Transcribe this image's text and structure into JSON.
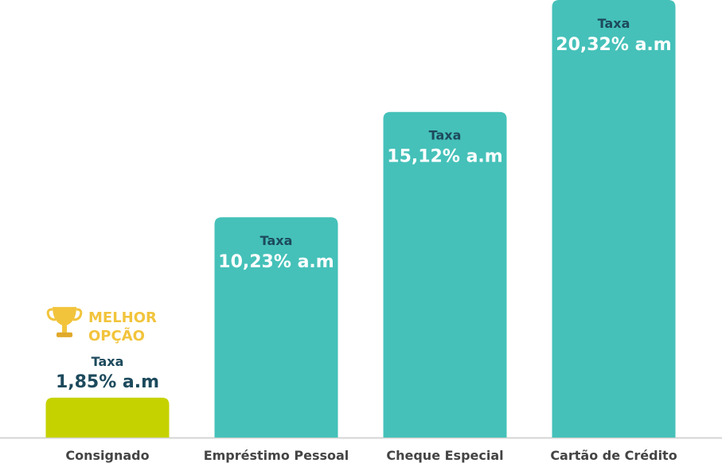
{
  "chart_data": {
    "type": "bar",
    "categories": [
      "Consignado",
      "Empréstimo Pessoal",
      "Cheque Especial",
      "Cartão de Crédito"
    ],
    "values": [
      1.85,
      10.23,
      15.12,
      20.32
    ],
    "value_labels": [
      "1,85% a.m",
      "10,23% a.m",
      "15,12% a.m",
      "20,32% a.m"
    ],
    "bar_label": "Taxa",
    "colors": [
      "#c6d200",
      "#45c1b9",
      "#45c1b9",
      "#45c1b9"
    ],
    "annotation": [
      "MELHOR",
      "OPÇÃO"
    ]
  }
}
